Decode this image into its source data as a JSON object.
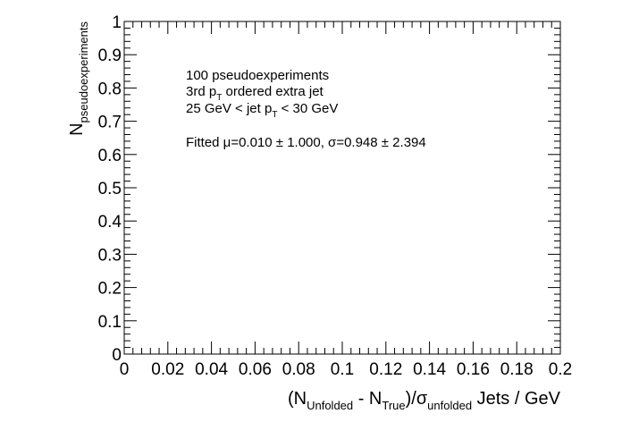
{
  "chart_data": {
    "type": "bar",
    "title": "",
    "xlim": [
      0,
      0.2
    ],
    "ylim": [
      0,
      1
    ],
    "x_ticks": [
      0,
      0.02,
      0.04,
      0.06,
      0.08,
      0.1,
      0.12,
      0.14,
      0.16,
      0.18,
      0.2
    ],
    "x_tick_labels": [
      "0",
      "0.02",
      "0.04",
      "0.06",
      "0.08",
      "0.1",
      "0.12",
      "0.14",
      "0.16",
      "0.18",
      "0.2"
    ],
    "y_ticks": [
      0,
      0.1,
      0.2,
      0.3,
      0.4,
      0.5,
      0.6,
      0.7,
      0.8,
      0.9,
      1
    ],
    "y_tick_labels": [
      "0",
      "0.1",
      "0.2",
      "0.3",
      "0.4",
      "0.5",
      "0.6",
      "0.7",
      "0.8",
      "0.9",
      "1"
    ],
    "series": [],
    "grid": false,
    "xlabel": {
      "open": "(N",
      "sub1": "Unfolded",
      "mid": " - N",
      "sub2": "True",
      "close": ")/σ",
      "sub3": "unfolded",
      "tail": " Jets / GeV"
    },
    "ylabel": {
      "main": "N",
      "sub": "pseudoexperiments"
    },
    "annotations": {
      "line1": "100 pseudoexperiments",
      "line2_pre": " 3rd p",
      "line2_sub": "T",
      "line2_post": " ordered extra jet",
      "line3_pre": "25 GeV < jet p",
      "line3_sub": "T",
      "line3_post": " < 30 GeV",
      "line4": "Fitted μ=0.010 ± 1.000, σ=0.948 ± 2.394"
    }
  }
}
